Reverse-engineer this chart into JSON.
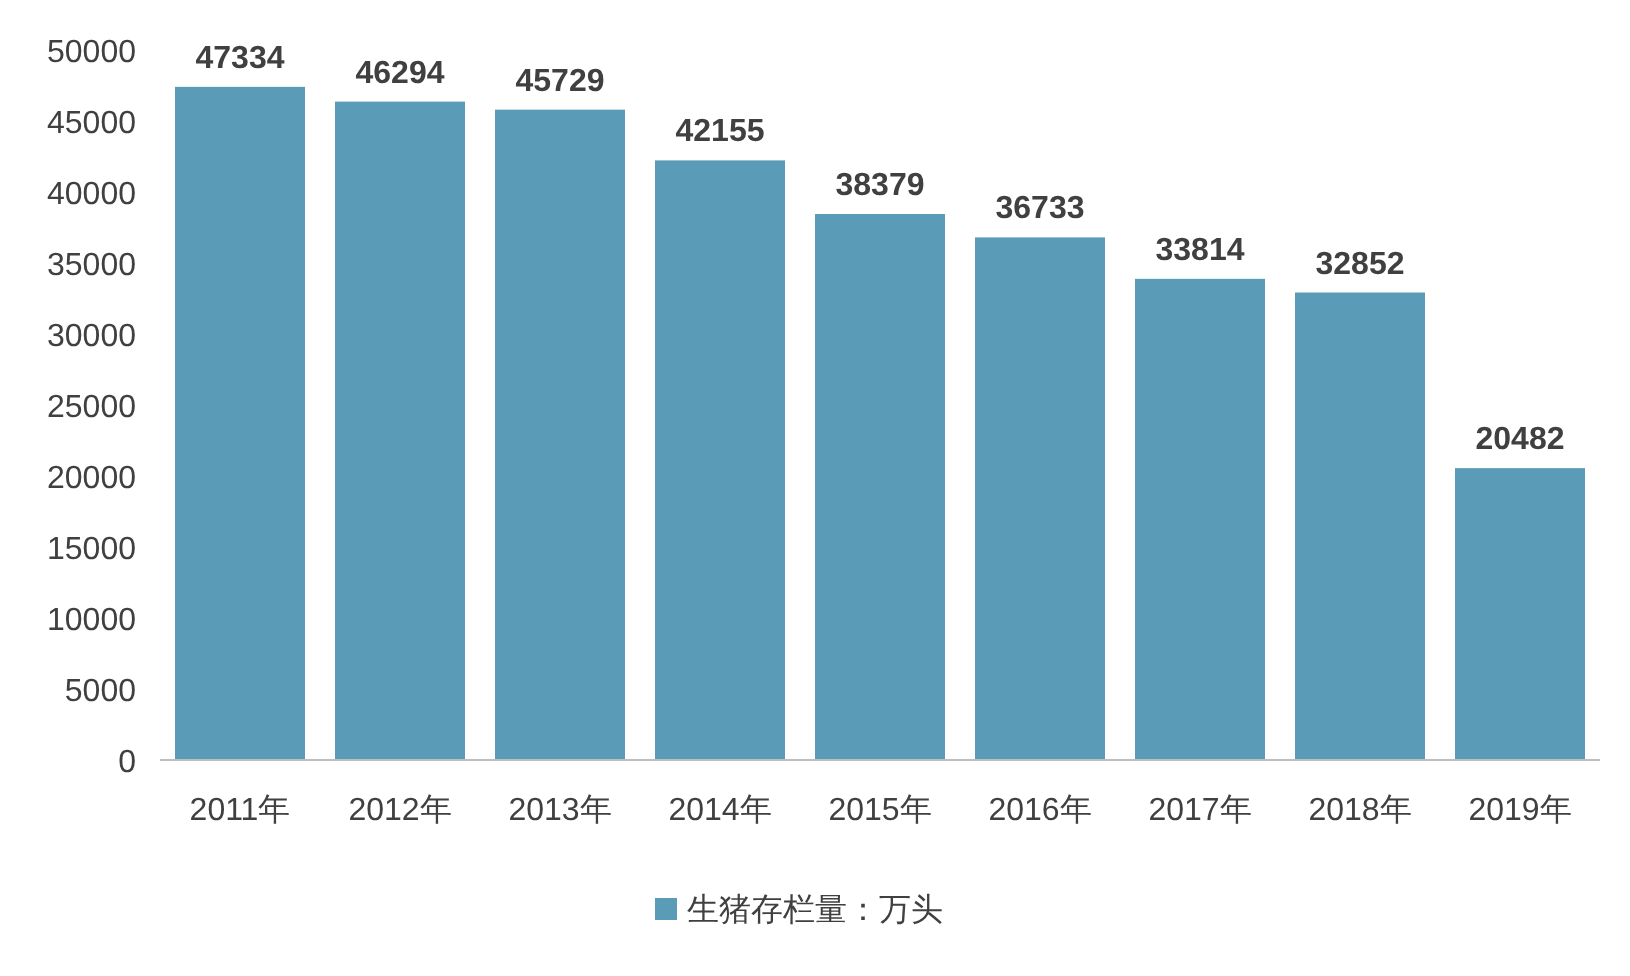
{
  "chart_data": {
    "type": "bar",
    "categories": [
      "2011年",
      "2012年",
      "2013年",
      "2014年",
      "2015年",
      "2016年",
      "2017年",
      "2018年",
      "2019年"
    ],
    "series": [
      {
        "name": "生猪存栏量：万头",
        "color": "#5a9bb8",
        "values": [
          47334,
          46294,
          45729,
          42155,
          38379,
          36733,
          33814,
          32852,
          20482
        ]
      }
    ],
    "ylim": [
      0,
      50000
    ],
    "yticks": [
      0,
      5000,
      10000,
      15000,
      20000,
      25000,
      30000,
      35000,
      40000,
      45000,
      50000
    ],
    "data_labels": true,
    "legend": "bottom",
    "grid": false
  }
}
